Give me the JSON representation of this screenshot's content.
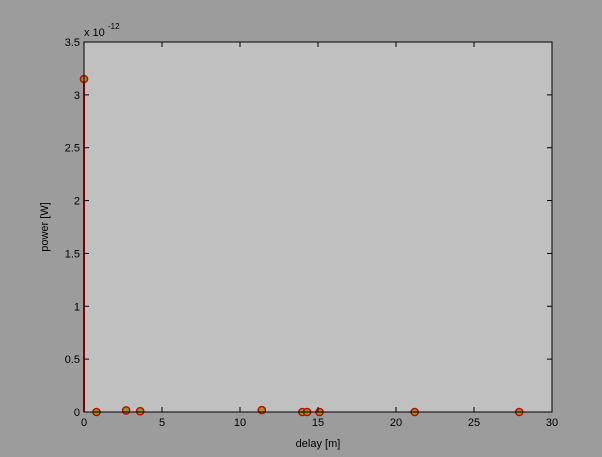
{
  "chart_data": {
    "type": "scatter",
    "title": "",
    "xlabel": "delay [m]",
    "ylabel": "power [W]",
    "xlim": [
      0,
      30
    ],
    "ylim": [
      0,
      3.5
    ],
    "y_exponent_label": "x 10",
    "y_exponent_power": "-12",
    "xticks": [
      "0",
      "5",
      "10",
      "15",
      "20",
      "25",
      "30"
    ],
    "yticks": [
      "0",
      "0.5",
      "1",
      "1.5",
      "2",
      "2.5",
      "3",
      "3.5"
    ],
    "grid": false,
    "legend": false,
    "colors": {
      "figure_bg": "#9c9c9c",
      "axes_bg": "#c0c0c0",
      "stem": "#ff0000",
      "marker_edge": "#cc0000",
      "marker_fill": "#8a9a2a"
    },
    "series": [
      {
        "x": [
          0.0,
          0.8,
          2.7,
          3.6,
          11.4,
          14.0,
          14.3,
          15.1,
          21.2,
          27.9
        ],
        "y": [
          3.15,
          0.0,
          0.015,
          0.008,
          0.018,
          0.0,
          0.0,
          0.0,
          0.0,
          0.0
        ]
      }
    ]
  }
}
